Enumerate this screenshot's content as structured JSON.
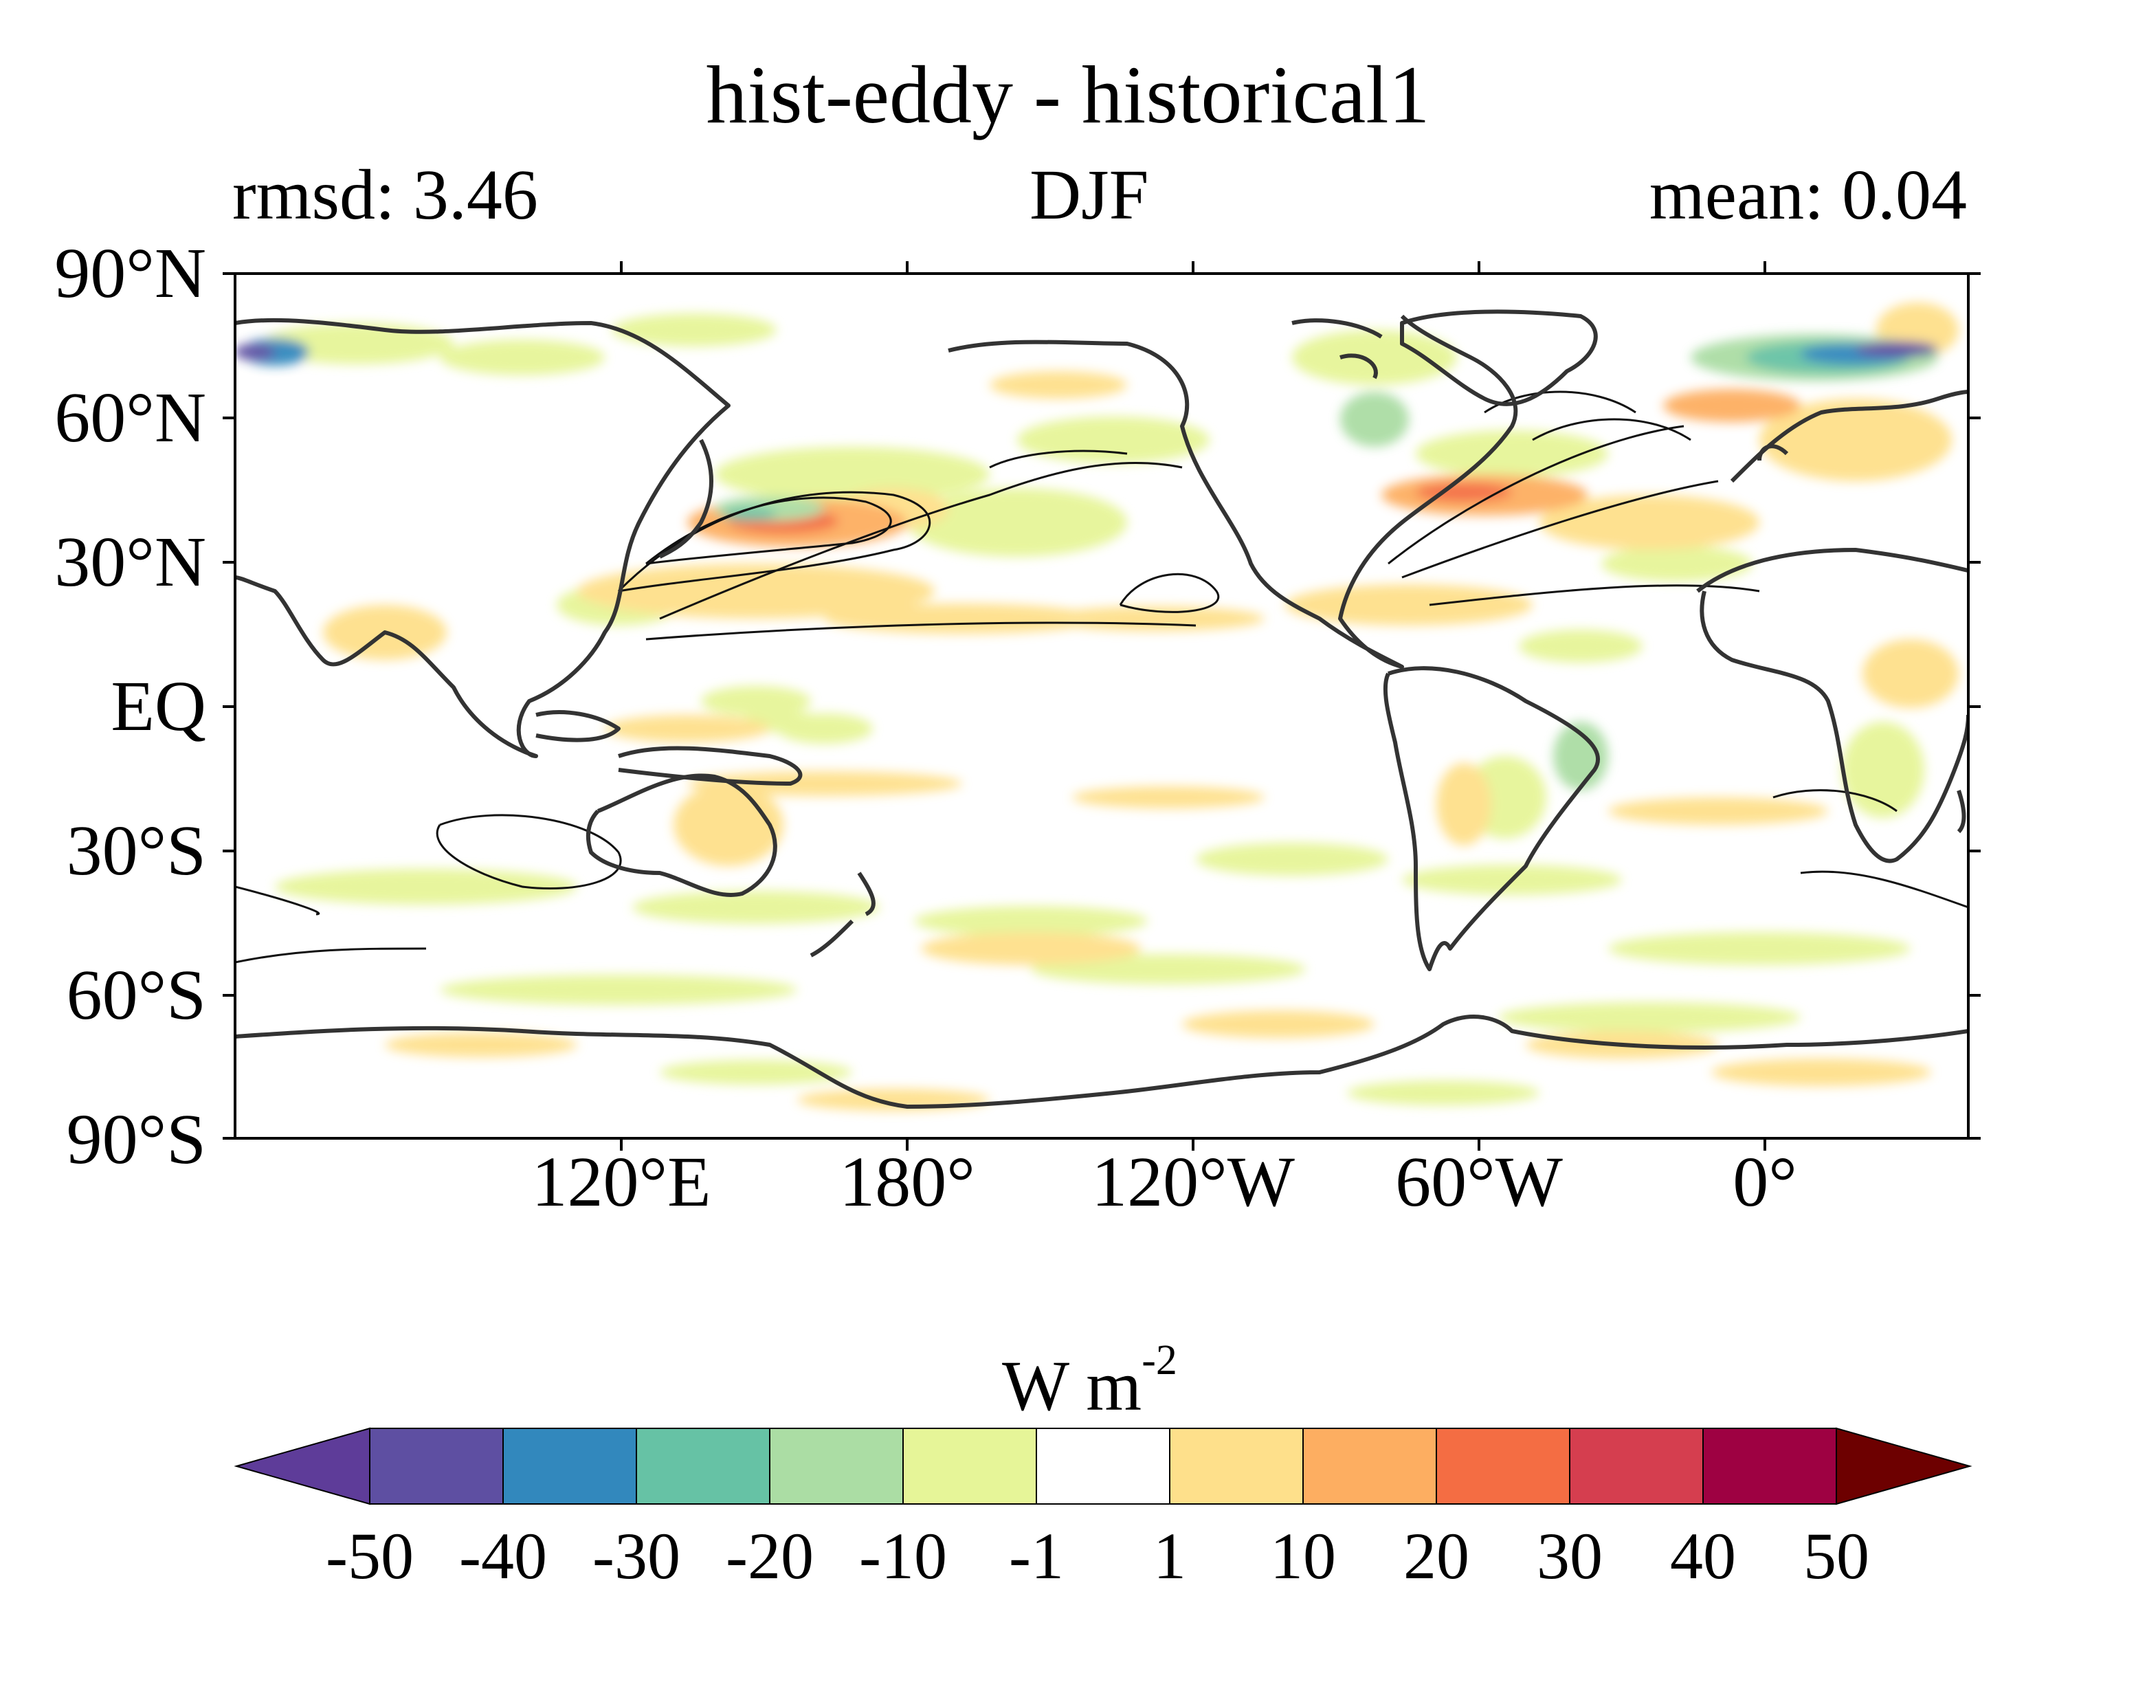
{
  "title": "hist-eddy - historical1",
  "stats": {
    "rmsd": "rmsd: 3.46",
    "season": "DJF",
    "mean": "mean: 0.04"
  },
  "lat_labels": [
    "90°N",
    "60°N",
    "30°N",
    "EQ",
    "30°S",
    "60°S",
    "90°S"
  ],
  "lon_labels": [
    "120°E",
    "180°",
    "120°W",
    "60°W",
    "0°"
  ],
  "colorbar": {
    "units": "W m",
    "units_sup": "-2",
    "labels": [
      "-50",
      "-40",
      "-30",
      "-20",
      "-10",
      "-1",
      "1",
      "10",
      "20",
      "30",
      "40",
      "50"
    ],
    "colors": [
      "#5e3c99",
      "#5e4fa2",
      "#3288bd",
      "#66c2a5",
      "#abdda4",
      "#e6f598",
      "#ffffff",
      "#fee08b",
      "#fdae61",
      "#f46d43",
      "#d53e4f",
      "#9e0142",
      "#6d0000"
    ]
  }
}
